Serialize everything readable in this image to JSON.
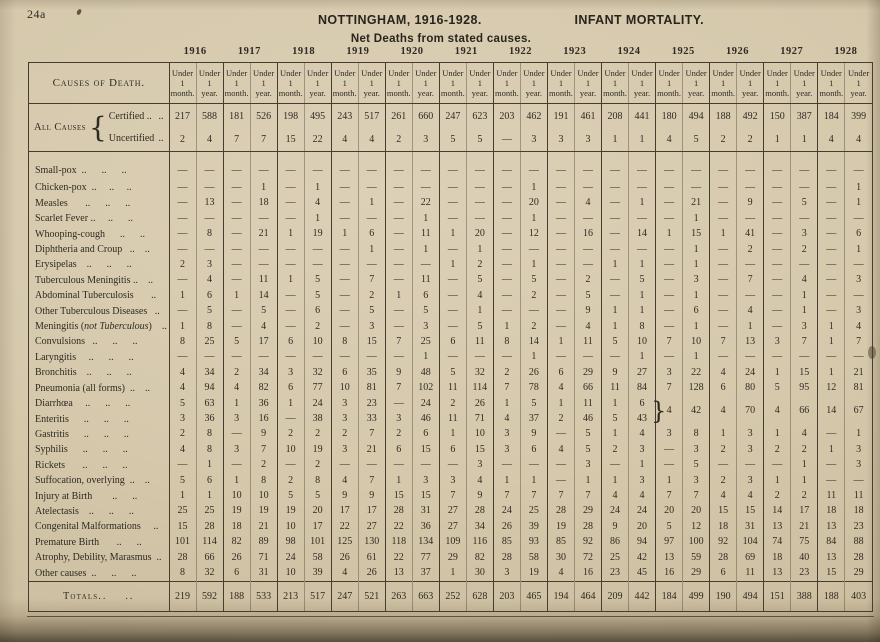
{
  "page": {
    "page_number": "24a",
    "title_left": "NOTTINGHAM, 1916-1928.",
    "title_right": "INFANT MORTALITY.",
    "subtitle": "Net Deaths from stated causes."
  },
  "table": {
    "causes_header": "Causes of Death.",
    "years": [
      "1916",
      "1917",
      "1918",
      "1919",
      "1920",
      "1921",
      "1922",
      "1923",
      "1924",
      "1925",
      "1926",
      "1927",
      "1928"
    ],
    "col_headers": {
      "month": "Under\n1\nmonth.",
      "year": "Under\n1\nyear."
    },
    "all_causes": {
      "group_label": "All Causes",
      "brace": "{",
      "leader": "..",
      "certified": {
        "label": "Certified ..",
        "values": [
          "217",
          "588",
          "181",
          "526",
          "198",
          "495",
          "243",
          "517",
          "261",
          "660",
          "247",
          "623",
          "203",
          "462",
          "191",
          "461",
          "208",
          "441",
          "180",
          "494",
          "188",
          "492",
          "150",
          "387",
          "184",
          "399"
        ]
      },
      "uncertified": {
        "label": "Uncertified",
        "values": [
          "2",
          "4",
          "7",
          "7",
          "15",
          "22",
          "4",
          "4",
          "2",
          "3",
          "5",
          "5",
          "—",
          "3",
          "3",
          "3",
          "1",
          "1",
          "4",
          "5",
          "2",
          "2",
          "1",
          "1",
          "4",
          "4"
        ]
      }
    },
    "rows": [
      {
        "key": "small-pox",
        "label": "Small-pox  ..      ..      ..",
        "values": [
          "—",
          "—",
          "—",
          "—",
          "—",
          "—",
          "—",
          "—",
          "—",
          "—",
          "—",
          "—",
          "—",
          "—",
          "—",
          "—",
          "—",
          "—",
          "—",
          "—",
          "—",
          "—",
          "—",
          "—",
          "—",
          "—"
        ]
      },
      {
        "key": "chicken-pox",
        "label": "Chicken-pox  ..     ..     ..",
        "values": [
          "—",
          "—",
          "—",
          "1",
          "—",
          "1",
          "—",
          "—",
          "—",
          "—",
          "—",
          "—",
          "—",
          "1",
          "—",
          "—",
          "—",
          "—",
          "—",
          "—",
          "—",
          "—",
          "—",
          "—",
          "—",
          "1"
        ]
      },
      {
        "key": "measles",
        "label": "Measles       ..      ..      ..",
        "values": [
          "—",
          "13",
          "—",
          "18",
          "—",
          "4",
          "—",
          "1",
          "—",
          "22",
          "—",
          "—",
          "—",
          "20",
          "—",
          "4",
          "—",
          "1",
          "—",
          "21",
          "—",
          "9",
          "—",
          "5",
          "—",
          "1"
        ]
      },
      {
        "key": "scarlet-fever",
        "label": "Scarlet Fever ..     ..      ..",
        "values": [
          "—",
          "—",
          "—",
          "—",
          "—",
          "1",
          "—",
          "—",
          "—",
          "1",
          "—",
          "—",
          "—",
          "1",
          "—",
          "—",
          "—",
          "—",
          "—",
          "1",
          "—",
          "—",
          "—",
          "—",
          "—",
          "—"
        ]
      },
      {
        "key": "whooping-cough",
        "label": "Whooping-cough      ..      ..",
        "values": [
          "—",
          "8",
          "—",
          "21",
          "1",
          "19",
          "1",
          "6",
          "—",
          "11",
          "1",
          "20",
          "—",
          "12",
          "—",
          "16",
          "—",
          "14",
          "1",
          "15",
          "1",
          "41",
          "—",
          "3",
          "—",
          "6"
        ]
      },
      {
        "key": "diphtheria-and-croup",
        "label": "Diphtheria and Croup   ..    ..",
        "values": [
          "—",
          "—",
          "—",
          "—",
          "—",
          "—",
          "—",
          "1",
          "—",
          "1",
          "—",
          "1",
          "—",
          "—",
          "—",
          "—",
          "—",
          "—",
          "—",
          "1",
          "—",
          "2",
          "—",
          "2",
          "—",
          "1"
        ]
      },
      {
        "key": "erysipelas",
        "label": "Erysipelas    ..      ..      ..",
        "values": [
          "2",
          "3",
          "—",
          "—",
          "—",
          "—",
          "—",
          "—",
          "—",
          "—",
          "1",
          "2",
          "—",
          "1",
          "—",
          "—",
          "1",
          "1",
          "—",
          "1",
          "—",
          "—",
          "—",
          "—",
          "—",
          "—"
        ]
      },
      {
        "key": "tuberculous-meningitis",
        "label": "Tuberculous Meningitis ..    ..",
        "values": [
          "—",
          "4",
          "—",
          "11",
          "1",
          "5",
          "—",
          "7",
          "—",
          "11",
          "—",
          "5",
          "—",
          "5",
          "—",
          "2",
          "—",
          "5",
          "—",
          "3",
          "—",
          "7",
          "—",
          "4",
          "—",
          "3"
        ]
      },
      {
        "key": "abdominal-tuberculosis",
        "label": "Abdominal Tuberculosis       ..",
        "values": [
          "1",
          "6",
          "1",
          "14",
          "—",
          "5",
          "—",
          "2",
          "1",
          "6",
          "—",
          "4",
          "—",
          "2",
          "—",
          "5",
          "—",
          "1",
          "—",
          "1",
          "—",
          "—",
          "—",
          "1",
          "—",
          "—"
        ]
      },
      {
        "key": "other-tuberculous-diseases",
        "label": "Other Tuberculous Diseases   ..",
        "values": [
          "—",
          "5",
          "—",
          "5",
          "—",
          "6",
          "—",
          "5",
          "—",
          "5",
          "—",
          "1",
          "—",
          "—",
          "—",
          "9",
          "1",
          "1",
          "—",
          "6",
          "—",
          "4",
          "—",
          "1",
          "—",
          "3"
        ]
      },
      {
        "key": "meningitis-not-tuberculous",
        "label_parts": [
          "Meningitis (",
          "not Tuberculous",
          ")    .."
        ],
        "values": [
          "1",
          "8",
          "—",
          "4",
          "—",
          "2",
          "—",
          "3",
          "—",
          "3",
          "—",
          "5",
          "1",
          "2",
          "—",
          "4",
          "1",
          "8",
          "—",
          "1",
          "—",
          "1",
          "—",
          "3",
          "1",
          "4"
        ]
      },
      {
        "key": "convulsions",
        "label": "Convulsions   ..      ..      ..",
        "values": [
          "8",
          "25",
          "5",
          "17",
          "6",
          "10",
          "8",
          "15",
          "7",
          "25",
          "6",
          "11",
          "8",
          "14",
          "1",
          "11",
          "5",
          "10",
          "7",
          "10",
          "7",
          "13",
          "3",
          "7",
          "1",
          "7"
        ]
      },
      {
        "key": "laryngitis",
        "label": "Laryngitis     ..      ..      ..",
        "values": [
          "—",
          "—",
          "—",
          "—",
          "—",
          "—",
          "—",
          "—",
          "—",
          "1",
          "—",
          "—",
          "—",
          "1",
          "—",
          "—",
          "—",
          "1",
          "—",
          "1",
          "—",
          "—",
          "—",
          "—",
          "—",
          "—"
        ]
      },
      {
        "key": "bronchitis",
        "label": "Bronchitis    ..      ..      ..",
        "values": [
          "4",
          "34",
          "2",
          "34",
          "3",
          "32",
          "6",
          "35",
          "9",
          "48",
          "5",
          "32",
          "2",
          "26",
          "6",
          "29",
          "9",
          "27",
          "3",
          "22",
          "4",
          "24",
          "1",
          "15",
          "1",
          "21"
        ]
      },
      {
        "key": "pneumonia-all-forms",
        "label": "Pneumonia (all forms)  ..    ..",
        "values": [
          "4",
          "94",
          "4",
          "82",
          "6",
          "77",
          "10",
          "81",
          "7",
          "102",
          "11",
          "114",
          "7",
          "78",
          "4",
          "66",
          "11",
          "84",
          "7",
          "128",
          "6",
          "80",
          "5",
          "95",
          "12",
          "81"
        ]
      },
      {
        "key": "diarrhoea",
        "label": "Diarrhœa     ..      ..      ..",
        "values": [
          "5",
          "63",
          "1",
          "36",
          "1",
          "24",
          "3",
          "23",
          "—",
          "24",
          "2",
          "26",
          "1",
          "5",
          "1",
          "11",
          "1",
          "6"
        ]
      },
      {
        "key": "enteritis",
        "label": "Enteritis      ..      ..      ..",
        "values": [
          "3",
          "36",
          "3",
          "16",
          "—",
          "38",
          "3",
          "33",
          "3",
          "46",
          "11",
          "71",
          "4",
          "37",
          "2",
          "46",
          "5",
          "43"
        ]
      },
      {
        "key": "gastritis",
        "label": "Gastritis      ..      ..      ..",
        "values": [
          "2",
          "8",
          "—",
          "9",
          "2",
          "2",
          "2",
          "7",
          "2",
          "6",
          "1",
          "10",
          "3",
          "9",
          "—",
          "5",
          "1",
          "4",
          "3",
          "8",
          "1",
          "3",
          "1",
          "4",
          "—",
          "1"
        ]
      },
      {
        "key": "syphilis",
        "label": "Syphilis      ..      ..      ..",
        "values": [
          "4",
          "8",
          "3",
          "7",
          "10",
          "19",
          "3",
          "21",
          "6",
          "15",
          "6",
          "15",
          "3",
          "6",
          "4",
          "5",
          "2",
          "3",
          "—",
          "3",
          "2",
          "3",
          "2",
          "2",
          "1",
          "3"
        ]
      },
      {
        "key": "rickets",
        "label": "Rickets       ..      ..      ..",
        "values": [
          "—",
          "1",
          "—",
          "2",
          "—",
          "2",
          "—",
          "—",
          "—",
          "—",
          "—",
          "3",
          "—",
          "—",
          "—",
          "3",
          "—",
          "1",
          "—",
          "5",
          "—",
          "—",
          "—",
          "1",
          "—",
          "3"
        ]
      },
      {
        "key": "suffocation-overlying",
        "label": "Suffocation, overlying  ..    ..",
        "values": [
          "5",
          "6",
          "1",
          "8",
          "2",
          "8",
          "4",
          "7",
          "1",
          "3",
          "3",
          "4",
          "1",
          "1",
          "—",
          "1",
          "1",
          "3",
          "1",
          "3",
          "2",
          "3",
          "1",
          "1",
          "—",
          "—"
        ]
      },
      {
        "key": "injury-at-birth",
        "label": "Injury at Birth        ..      ..",
        "values": [
          "1",
          "1",
          "10",
          "10",
          "5",
          "5",
          "9",
          "9",
          "15",
          "15",
          "7",
          "9",
          "7",
          "7",
          "7",
          "7",
          "4",
          "4",
          "7",
          "7",
          "4",
          "4",
          "2",
          "2",
          "11",
          "11"
        ]
      },
      {
        "key": "atelectasis",
        "label": "Atelectasis    ..      ..      ..",
        "values": [
          "25",
          "25",
          "19",
          "19",
          "19",
          "20",
          "17",
          "17",
          "28",
          "31",
          "27",
          "28",
          "24",
          "25",
          "28",
          "29",
          "24",
          "24",
          "20",
          "20",
          "15",
          "15",
          "14",
          "17",
          "18",
          "18"
        ]
      },
      {
        "key": "congenital-malformations",
        "label": "Congenital Malformations     ..",
        "values": [
          "15",
          "28",
          "18",
          "21",
          "10",
          "17",
          "22",
          "27",
          "22",
          "36",
          "27",
          "34",
          "26",
          "39",
          "19",
          "28",
          "9",
          "20",
          "5",
          "12",
          "18",
          "31",
          "13",
          "21",
          "13",
          "23"
        ]
      },
      {
        "key": "premature-birth",
        "label": "Premature Birth       ..      ..",
        "values": [
          "101",
          "114",
          "82",
          "89",
          "98",
          "101",
          "125",
          "130",
          "118",
          "134",
          "109",
          "116",
          "85",
          "93",
          "85",
          "92",
          "86",
          "94",
          "97",
          "100",
          "92",
          "104",
          "74",
          "75",
          "84",
          "88"
        ]
      },
      {
        "key": "atrophy-debility-marasmus",
        "label": "Atrophy, Debility, Marasmus  ..",
        "values": [
          "28",
          "66",
          "26",
          "71",
          "24",
          "58",
          "26",
          "61",
          "22",
          "77",
          "29",
          "82",
          "28",
          "58",
          "30",
          "72",
          "25",
          "42",
          "13",
          "59",
          "28",
          "69",
          "18",
          "40",
          "13",
          "28"
        ]
      },
      {
        "key": "other-causes",
        "label": "Other causes  ..      ..      ..",
        "values": [
          "8",
          "32",
          "6",
          "31",
          "10",
          "39",
          "4",
          "26",
          "13",
          "37",
          "1",
          "30",
          "3",
          "19",
          "4",
          "16",
          "23",
          "45",
          "16",
          "29",
          "6",
          "11",
          "13",
          "23",
          "15",
          "29"
        ]
      }
    ],
    "combined_1925_1928": {
      "brace": "}",
      "values": [
        "4",
        "42",
        "4",
        "70",
        "4",
        "66",
        "14",
        "67"
      ]
    },
    "totals": {
      "label": "Totals",
      "leader": "..    ..",
      "values": [
        "219",
        "592",
        "188",
        "533",
        "213",
        "517",
        "247",
        "521",
        "263",
        "663",
        "252",
        "628",
        "203",
        "465",
        "194",
        "464",
        "209",
        "442",
        "184",
        "499",
        "190",
        "494",
        "151",
        "388",
        "188",
        "403"
      ]
    }
  }
}
